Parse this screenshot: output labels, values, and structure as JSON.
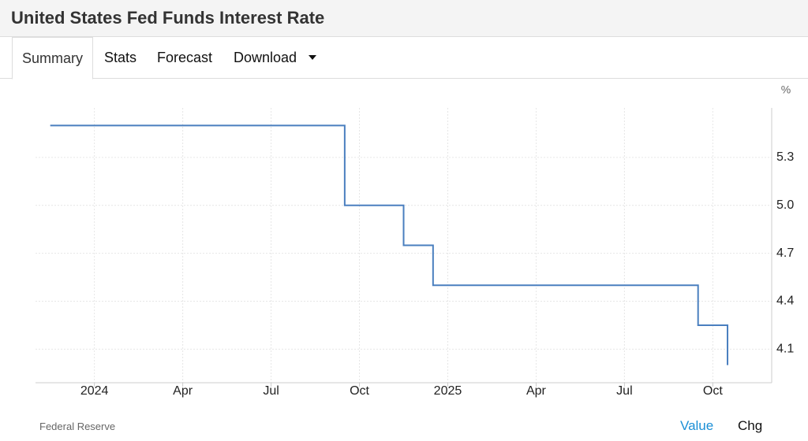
{
  "title": "United States Fed Funds Interest Rate",
  "tabs": [
    "Summary",
    "Stats",
    "Forecast",
    "Download"
  ],
  "chart_data": {
    "type": "line",
    "step": true,
    "unit": "%",
    "x": [
      "2023-11",
      "2024-09",
      "2024-11",
      "2024-12",
      "2025-09",
      "2025-10"
    ],
    "values": [
      5.5,
      5.0,
      4.75,
      4.5,
      4.25,
      4.0
    ],
    "color": "#4a7fbf",
    "xlim": [
      "2023-11",
      "2025-12"
    ],
    "xticks": [
      {
        "value": "2024-01",
        "label": "2024"
      },
      {
        "value": "2024-04",
        "label": "Apr"
      },
      {
        "value": "2024-07",
        "label": "Jul"
      },
      {
        "value": "2024-10",
        "label": "Oct"
      },
      {
        "value": "2025-01",
        "label": "2025"
      },
      {
        "value": "2025-04",
        "label": "Apr"
      },
      {
        "value": "2025-07",
        "label": "Jul"
      },
      {
        "value": "2025-10",
        "label": "Oct"
      }
    ],
    "ylim": [
      3.89,
      5.61
    ],
    "yticks": [
      4.1,
      4.4,
      4.7,
      {
        "value": 5,
        "label": "5.0"
      },
      5.3
    ],
    "grid": true
  },
  "source": "Federal Reserve",
  "toggles": [
    "Value",
    "Chg"
  ]
}
